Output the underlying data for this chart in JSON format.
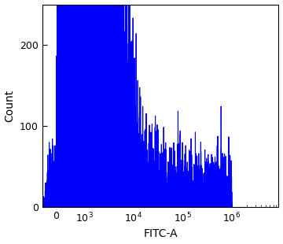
{
  "xlabel": "FITC-A",
  "ylabel": "Count",
  "ylim": [
    0,
    250
  ],
  "yticks": [
    0,
    100,
    200
  ],
  "background_color": "#ffffff",
  "line_black_color": "#000000",
  "line_blue_color": "#0000ff",
  "linewidth": 0.8,
  "figsize": [
    3.6,
    3.1
  ],
  "dpi": 100,
  "black_peak_log": 2.45,
  "black_peak_count": 155,
  "black_sigma_log": 0.18,
  "blue_peak_log": 2.6,
  "blue_peak_count": 225,
  "blue_sigma_log": 0.55,
  "noise_seed": 99,
  "n_points": 3000,
  "linthresh": 500,
  "linscale": 0.25
}
